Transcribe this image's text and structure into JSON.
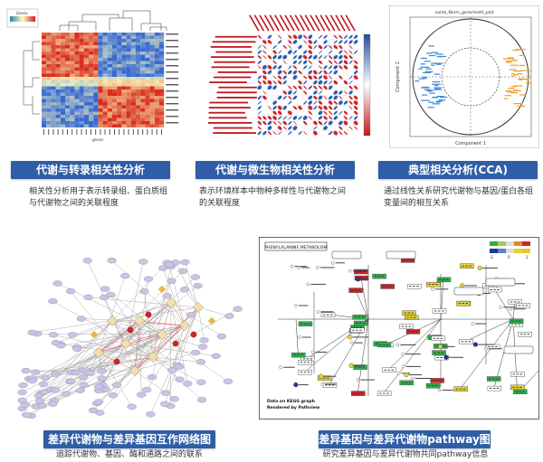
{
  "panels": [
    {
      "title": "代谢与转录相关性分析",
      "description": "相关性分析用于表示转录组、蛋白质组与代谢物之间的关联程度"
    },
    {
      "title": "代谢与微生物相关性分析",
      "description": "表示环境样本中物种多样性与代谢物之间的关联程度"
    },
    {
      "title": "典型相关分析(CCA)",
      "description": "通过线性关系研究代谢物与基因/蛋白各组变量间的相互关系"
    },
    {
      "title": "差异代谢物与差异基因互作网络图",
      "description": "追踪代谢物、基因、酶和通路之间的联系"
    },
    {
      "title": "差异基因与差异代谢物pathway图",
      "description": "研究差异基因与差异代谢物共同pathway信息"
    }
  ],
  "cca": {
    "title": "vanta_Norm_gene/meth_plot",
    "xlabel": "Component 1",
    "ylabel": "Component 2"
  },
  "heatmap": {
    "legend_label": "Genes",
    "xlabel": "genes"
  },
  "pathway": {
    "title": "PHENYLALANINE METABOLISM",
    "footer1": "Data on KEGG graph",
    "footer2": "Rendered by Pathview"
  },
  "colors": {
    "accent": "#2f5ea6"
  }
}
